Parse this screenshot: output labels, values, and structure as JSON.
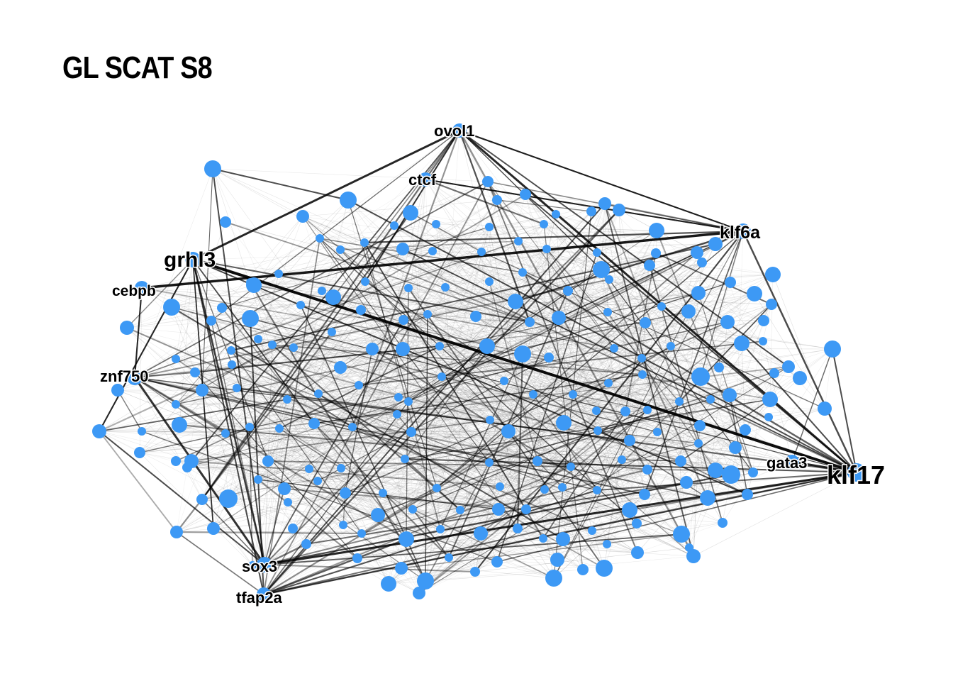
{
  "title": "GL SCAT S8",
  "colors": {
    "node": "#3d99f5",
    "edge": "#000000",
    "background": "#ffffff"
  },
  "labels": {
    "ovol1": "ovol1",
    "ctcf": "ctcf",
    "klf6a": "klf6a",
    "grhl3": "grhl3",
    "cebpb": "cebpb",
    "znf750": "znf750",
    "gata3": "gata3",
    "klf17": "klf17",
    "sox3": "sox3",
    "tfap2a": "tfap2a"
  }
}
